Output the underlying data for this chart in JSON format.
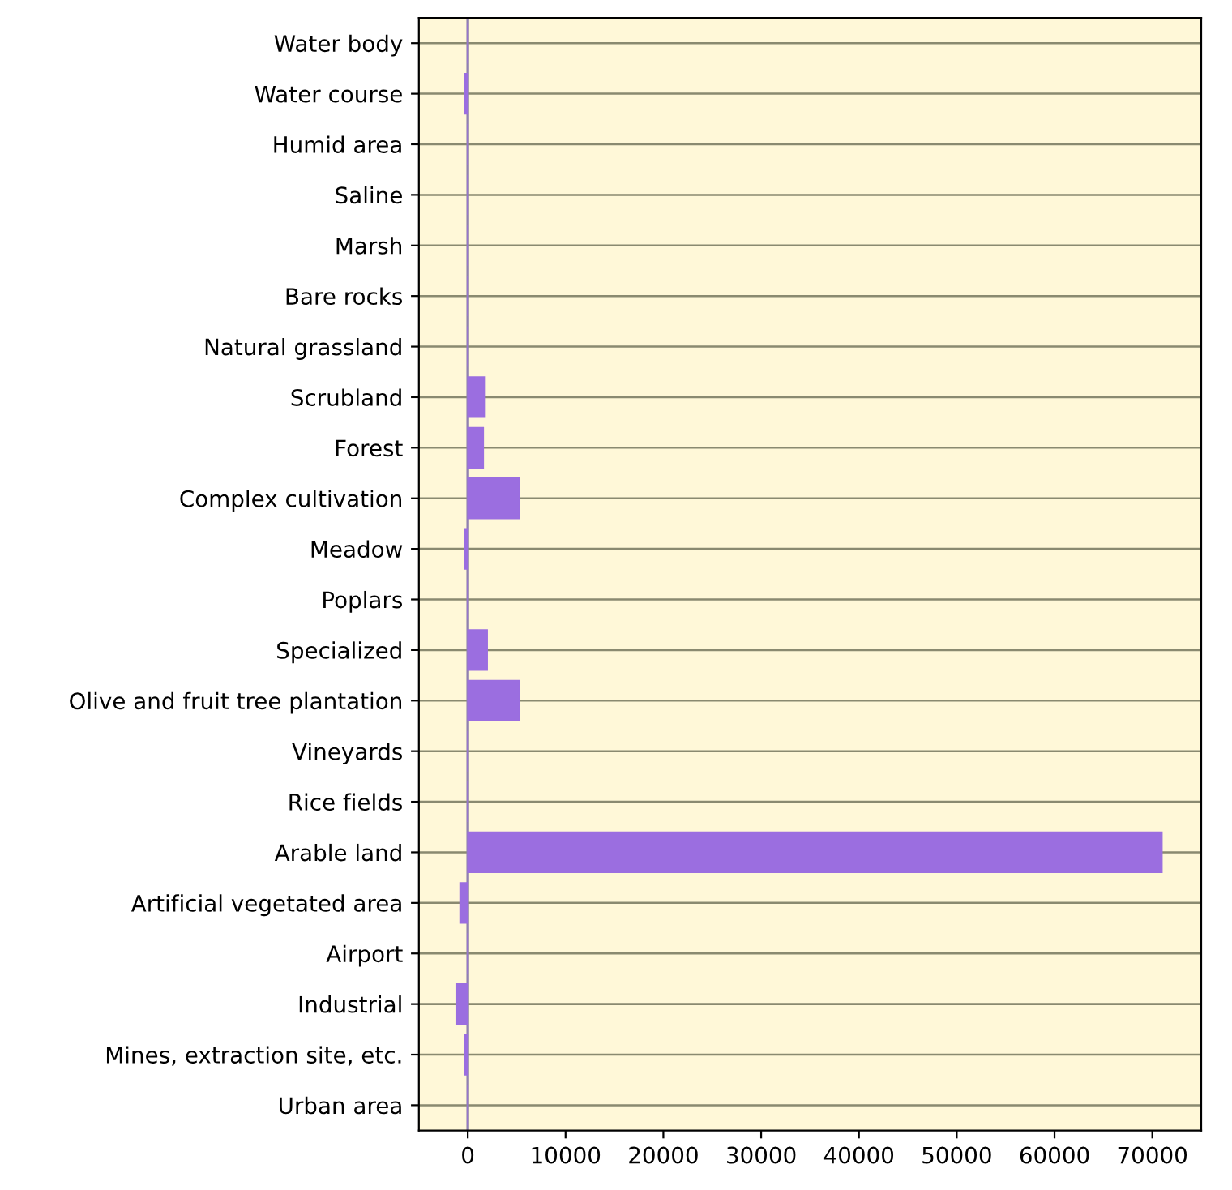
{
  "chart_data": {
    "type": "bar",
    "orientation": "horizontal",
    "categories": [
      "Water body",
      "Water course",
      "Humid area",
      "Saline",
      "Marsh",
      "Bare rocks",
      "Natural grassland",
      "Scrubland",
      "Forest",
      "Complex cultivation",
      "Meadow",
      "Poplars",
      "Specialized",
      "Olive and fruit tree plantation",
      "Vineyards",
      "Rice fields",
      "Arable land",
      "Artificial vegetated area",
      "Airport",
      "Industrial",
      "Mines, extraction site, etc.",
      "Urban area"
    ],
    "values": [
      0,
      -300,
      0,
      0,
      0,
      0,
      0,
      1700,
      1600,
      5300,
      -300,
      0,
      2000,
      5300,
      0,
      0,
      71000,
      -800,
      0,
      -1200,
      -300,
      0
    ],
    "color": "#9b6ee0",
    "xlim": [
      -5000,
      75000
    ],
    "xticks": [
      0,
      10000,
      20000,
      30000,
      40000,
      50000,
      60000,
      70000
    ],
    "grid": "y",
    "ref_lines": [
      {
        "axis": "x",
        "value": 0,
        "color": "#9080b0"
      }
    ]
  }
}
